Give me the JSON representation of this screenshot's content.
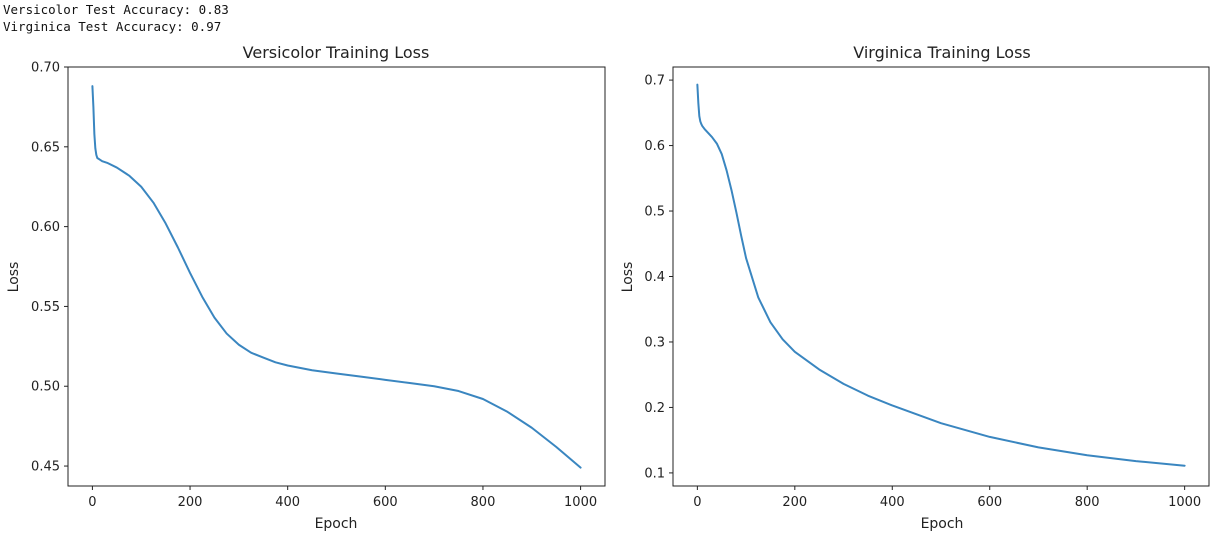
{
  "output_lines": [
    "Versicolor Test Accuracy: 0.83",
    "Virginica Test Accuracy: 0.97"
  ],
  "colors": {
    "line": "#3a86c0",
    "axes": "#222222"
  },
  "chart_data": [
    {
      "type": "line",
      "title": "Versicolor Training Loss",
      "xlabel": "Epoch",
      "ylabel": "Loss",
      "xlim": [
        -50,
        1050
      ],
      "ylim": [
        0.4375,
        0.7
      ],
      "xticks": [
        0,
        200,
        400,
        600,
        800,
        1000
      ],
      "xtick_labels": [
        "0",
        "200",
        "400",
        "600",
        "800",
        "1000"
      ],
      "yticks": [
        0.45,
        0.5,
        0.55,
        0.6,
        0.65,
        0.7
      ],
      "ytick_labels": [
        "0.45",
        "0.50",
        "0.55",
        "0.60",
        "0.65",
        "0.70"
      ],
      "grid": false,
      "series": [
        {
          "x": [
            0,
            2,
            4,
            6,
            8,
            10,
            15,
            20,
            30,
            50,
            75,
            100,
            125,
            150,
            175,
            200,
            225,
            250,
            275,
            300,
            325,
            350,
            375,
            400,
            450,
            500,
            550,
            600,
            650,
            700,
            750,
            800,
            850,
            900,
            950,
            1000
          ],
          "y": [
            0.688,
            0.675,
            0.658,
            0.649,
            0.645,
            0.643,
            0.642,
            0.641,
            0.64,
            0.637,
            0.632,
            0.625,
            0.615,
            0.602,
            0.587,
            0.571,
            0.556,
            0.543,
            0.533,
            0.526,
            0.521,
            0.518,
            0.515,
            0.513,
            0.51,
            0.508,
            0.506,
            0.504,
            0.502,
            0.5,
            0.497,
            0.492,
            0.484,
            0.474,
            0.462,
            0.449
          ]
        }
      ]
    },
    {
      "type": "line",
      "title": "Virginica Training Loss",
      "xlabel": "Epoch",
      "ylabel": "Loss",
      "xlim": [
        -50,
        1050
      ],
      "ylim": [
        0.08,
        0.72
      ],
      "xticks": [
        0,
        200,
        400,
        600,
        800,
        1000
      ],
      "xtick_labels": [
        "0",
        "200",
        "400",
        "600",
        "800",
        "1000"
      ],
      "yticks": [
        0.1,
        0.2,
        0.3,
        0.4,
        0.5,
        0.6,
        0.7
      ],
      "ytick_labels": [
        "0.1",
        "0.2",
        "0.3",
        "0.4",
        "0.5",
        "0.6",
        "0.7"
      ],
      "grid": false,
      "series": [
        {
          "x": [
            0,
            2,
            4,
            6,
            8,
            10,
            15,
            20,
            30,
            40,
            50,
            60,
            70,
            80,
            90,
            100,
            125,
            150,
            175,
            200,
            250,
            300,
            350,
            400,
            500,
            600,
            700,
            800,
            900,
            1000
          ],
          "y": [
            0.693,
            0.665,
            0.645,
            0.637,
            0.633,
            0.63,
            0.625,
            0.621,
            0.613,
            0.603,
            0.587,
            0.562,
            0.532,
            0.498,
            0.462,
            0.428,
            0.368,
            0.33,
            0.304,
            0.285,
            0.258,
            0.236,
            0.218,
            0.203,
            0.176,
            0.155,
            0.139,
            0.127,
            0.118,
            0.111
          ]
        }
      ]
    }
  ]
}
